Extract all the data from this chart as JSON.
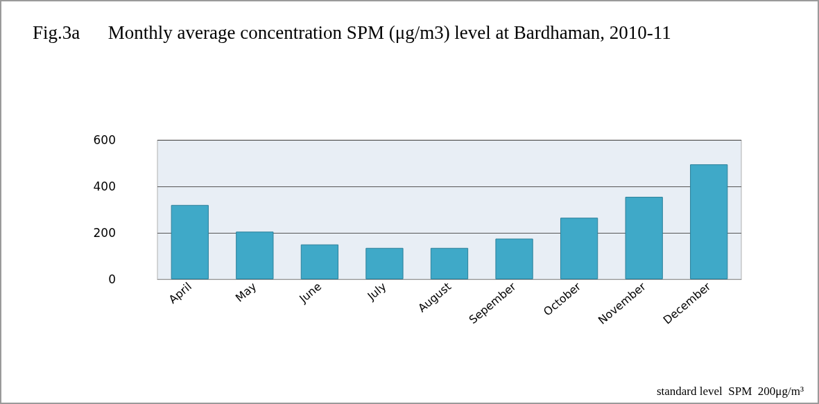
{
  "chart_data": {
    "type": "bar",
    "title": "Fig.3a      Monthly average concentration SPM (μg/m3) level at Bardhaman, 2010-11",
    "categories": [
      "April",
      "May",
      "June",
      "July",
      "August",
      "Sepember",
      "October",
      "November",
      "December"
    ],
    "values": [
      320,
      205,
      150,
      135,
      135,
      175,
      265,
      355,
      495
    ],
    "color": "#3fa9c8",
    "ylim": [
      0,
      600
    ],
    "yticks": [
      0,
      200,
      400,
      600
    ],
    "grid": "y",
    "annotations": [
      "standard level  SPM  200μg/m³"
    ]
  }
}
